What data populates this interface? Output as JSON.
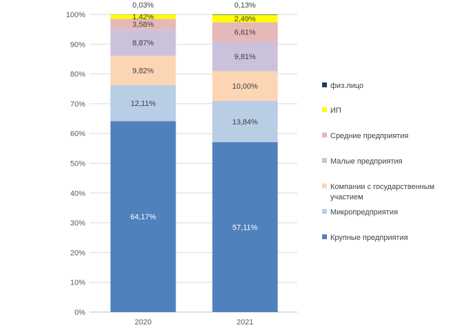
{
  "chart_data": {
    "type": "bar",
    "stacked": true,
    "percent": true,
    "categories": [
      "2020",
      "2021"
    ],
    "ylim": [
      0,
      100
    ],
    "yticks": [
      "0%",
      "10%",
      "20%",
      "30%",
      "40%",
      "50%",
      "60%",
      "70%",
      "80%",
      "90%",
      "100%"
    ],
    "grid": true,
    "legend_position": "right",
    "series": [
      {
        "name": "Крупные предприятия",
        "color": "#4f81bd",
        "values": [
          64.17,
          57.11
        ],
        "labels": [
          "64,17%",
          "57,11%"
        ],
        "label_color": "#ffffff"
      },
      {
        "name": "Микропредприятия",
        "color": "#b9cde5",
        "values": [
          12.11,
          13.84
        ],
        "labels": [
          "12,11%",
          "13,84%"
        ],
        "label_color": "#404040"
      },
      {
        "name": "Компании с государственным участием",
        "color": "#fcd5b5",
        "values": [
          9.82,
          10.0
        ],
        "labels": [
          "9,82%",
          "10,00%"
        ],
        "label_color": "#404040"
      },
      {
        "name": "Малые предприятия",
        "color": "#ccc1da",
        "values": [
          8.87,
          9.81
        ],
        "labels": [
          "8,87%",
          "9,81%"
        ],
        "label_color": "#404040"
      },
      {
        "name": "Средние предприятия",
        "color": "#e6b9b8",
        "values": [
          3.58,
          6.61
        ],
        "labels": [
          "3,58%",
          "6,61%"
        ],
        "label_color": "#404040"
      },
      {
        "name": "ИП",
        "color": "#ffff00",
        "values": [
          1.42,
          2.49
        ],
        "labels": [
          "1,42%",
          "2,49%"
        ],
        "label_color": "#404040"
      },
      {
        "name": "физ.лицо",
        "color": "#1f3864",
        "values": [
          0.03,
          0.13
        ],
        "labels": [
          "0,03%",
          "0,13%"
        ],
        "label_color": "#404040"
      }
    ],
    "legend_lines": [
      [
        "физ.лицо"
      ],
      [
        "ИП"
      ],
      [
        "Средние предприятия"
      ],
      [
        "Малые предприятия"
      ],
      [
        "Компании с государственным",
        "участием"
      ],
      [
        "Микропредприятия"
      ],
      [
        "Крупные предприятия"
      ]
    ]
  }
}
